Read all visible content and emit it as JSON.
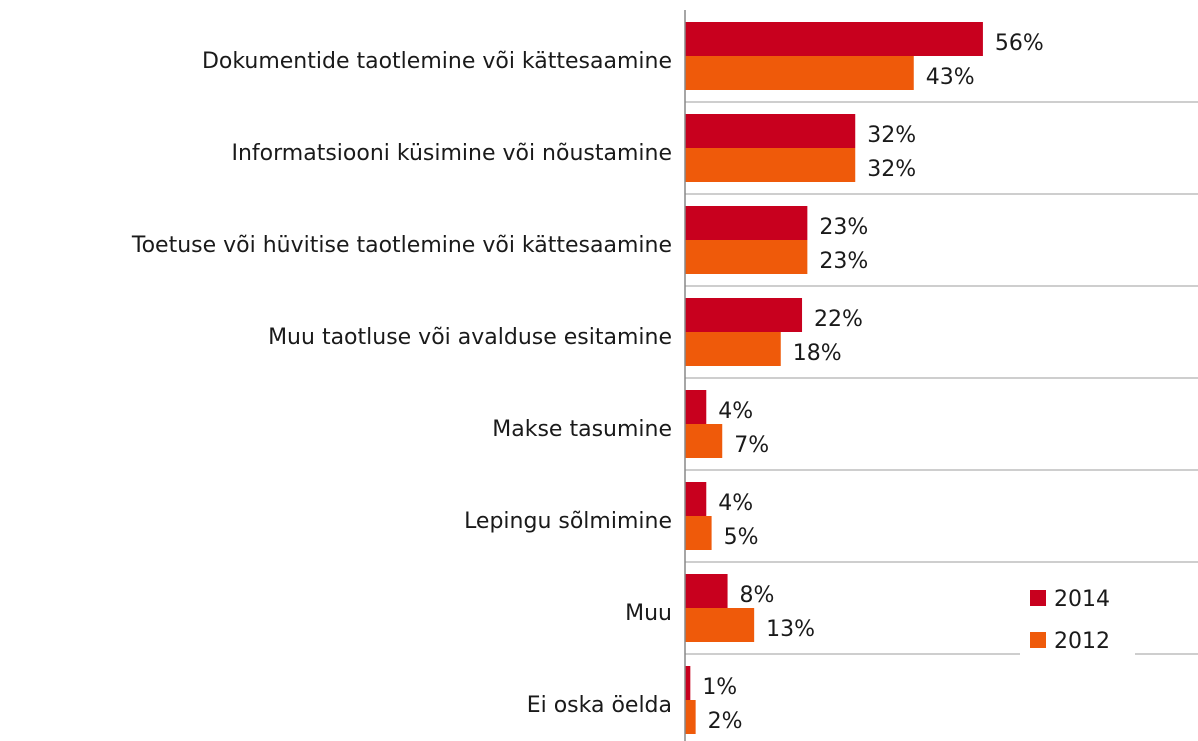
{
  "chart_data": {
    "type": "bar",
    "orientation": "horizontal",
    "categories": [
      "Dokumentide taotlemine või kättesaamine",
      "Informatsiooni küsimine või nõustamine",
      "Toetuse või hüvitise taotlemine või kättesaamine",
      "Muu taotluse või avalduse esitamine",
      "Makse tasumine",
      "Lepingu sõlmimine",
      "Muu",
      "Ei oska öelda"
    ],
    "series": [
      {
        "name": "2014",
        "color": "#c8001e",
        "values": [
          56,
          32,
          23,
          22,
          4,
          4,
          8,
          1
        ],
        "value_labels": [
          "56%",
          "32%",
          "23%",
          "22%",
          "4%",
          "4%",
          "8%",
          "1%"
        ]
      },
      {
        "name": "2012",
        "color": "#ef5a0a",
        "values": [
          43,
          32,
          23,
          18,
          7,
          5,
          13,
          2
        ],
        "value_labels": [
          "43%",
          "32%",
          "23%",
          "18%",
          "7%",
          "5%",
          "13%",
          "2%"
        ]
      }
    ],
    "legend": "lower right",
    "grid": true
  }
}
